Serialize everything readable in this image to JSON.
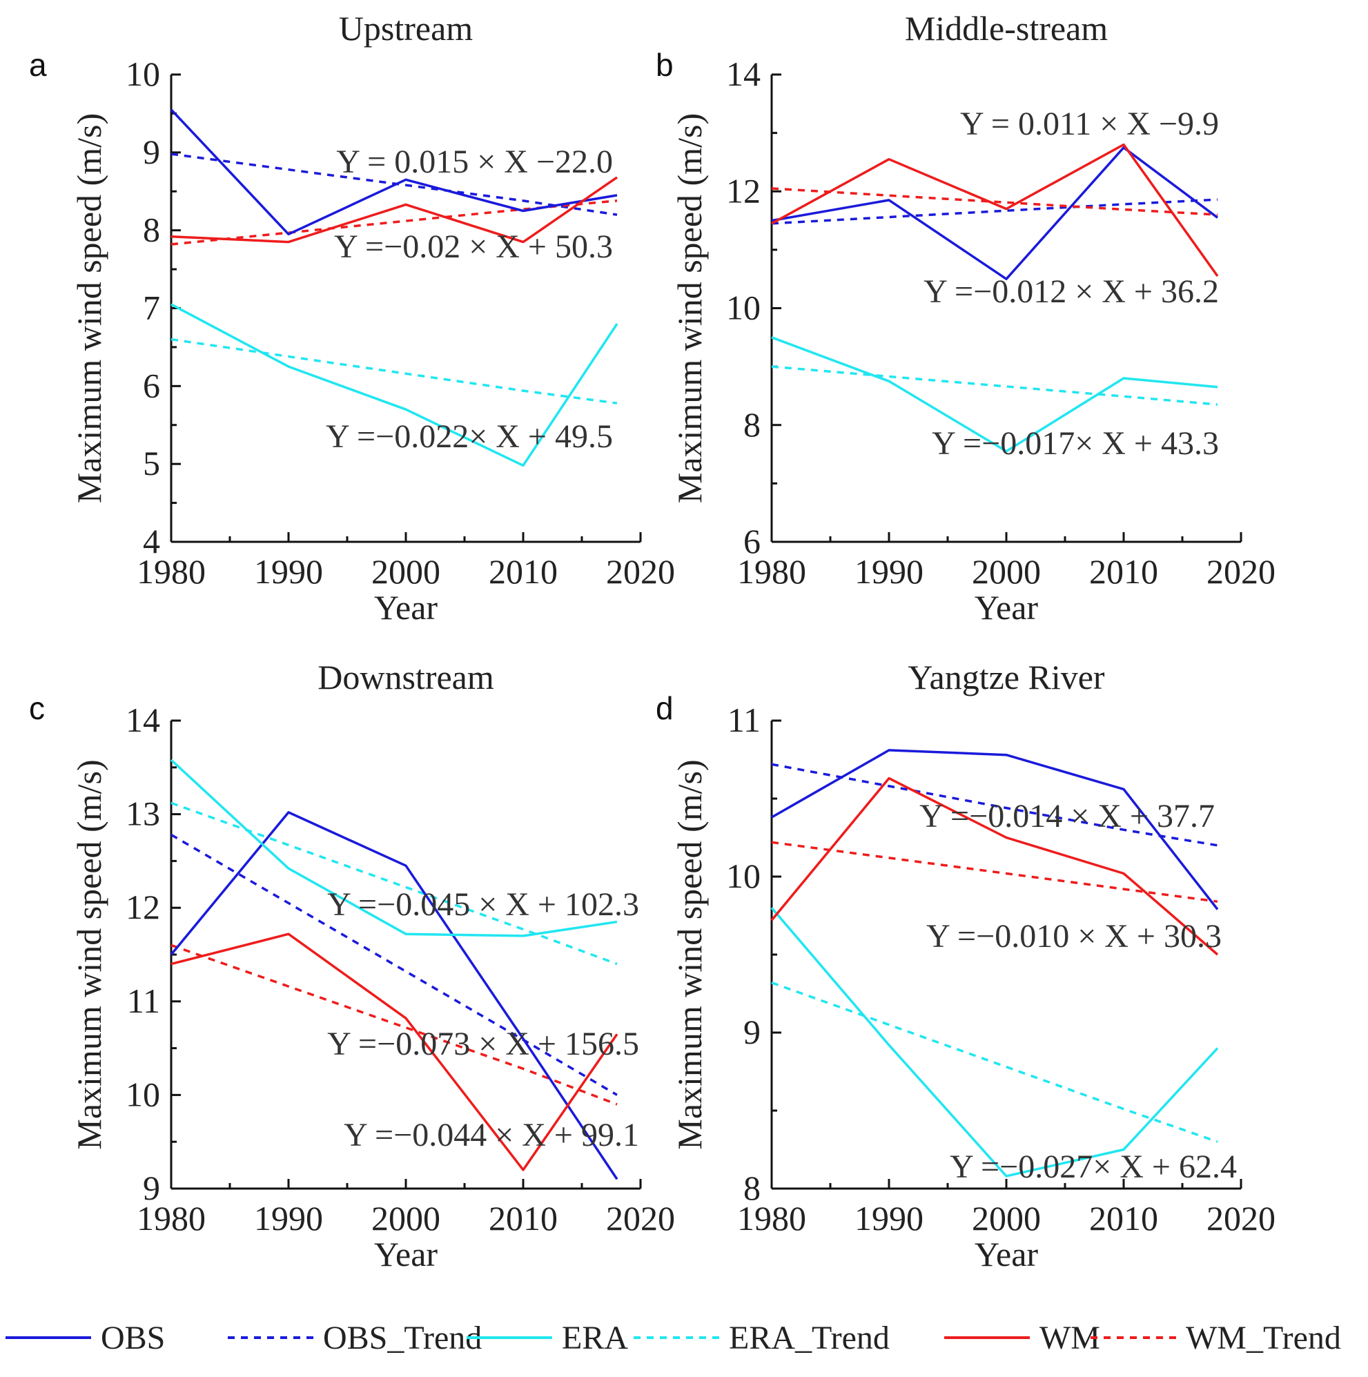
{
  "figure": {
    "legend": [
      {
        "label": "OBS",
        "color": "#1a1adb",
        "dashed": false
      },
      {
        "label": "OBS_Trend",
        "color": "#1a1adb",
        "dashed": true
      },
      {
        "label": "ERA",
        "color": "#21e6f0",
        "dashed": false
      },
      {
        "label": "ERA_Trend",
        "color": "#21e6f0",
        "dashed": true
      },
      {
        "label": "WM",
        "color": "#ee1c1c",
        "dashed": false
      },
      {
        "label": "WM_Trend",
        "color": "#ee1c1c",
        "dashed": true
      }
    ]
  },
  "chart_data": [
    {
      "type": "line",
      "panel_letter": "a",
      "title": "Upstream",
      "xlabel": "Year",
      "ylabel": "Maximum wind speed (m/s)",
      "xlim": [
        1980,
        2020
      ],
      "ylim": [
        4,
        10
      ],
      "xticks": [
        1980,
        1990,
        2000,
        2010,
        2020
      ],
      "yticks": [
        4,
        5,
        6,
        7,
        8,
        9,
        10
      ],
      "x": [
        1980,
        1990,
        2000,
        2010,
        2018
      ],
      "series": [
        {
          "name": "OBS",
          "values": [
            9.55,
            7.95,
            8.65,
            8.25,
            8.45
          ]
        },
        {
          "name": "OBS_Trend",
          "values": [
            8.98,
            8.78,
            8.58,
            8.38,
            8.2
          ]
        },
        {
          "name": "ERA",
          "values": [
            7.05,
            6.25,
            5.7,
            4.98,
            6.8
          ]
        },
        {
          "name": "ERA_Trend",
          "values": [
            6.6,
            6.38,
            6.16,
            5.94,
            5.78
          ]
        },
        {
          "name": "WM",
          "values": [
            7.92,
            7.85,
            8.33,
            7.85,
            8.68
          ]
        },
        {
          "name": "WM_Trend",
          "values": [
            7.82,
            7.97,
            8.12,
            8.27,
            8.38
          ]
        }
      ],
      "equations": [
        "Y = 0.015 × X −22.0",
        "Y =−0.02 × X + 50.3",
        "Y =−0.022× X + 49.5"
      ]
    },
    {
      "type": "line",
      "panel_letter": "b",
      "title": "Middle-stream",
      "xlabel": "Year",
      "ylabel": "Maximum wind speed (m/s)",
      "xlim": [
        1980,
        2020
      ],
      "ylim": [
        6,
        14
      ],
      "xticks": [
        1980,
        1990,
        2000,
        2010,
        2020
      ],
      "yticks": [
        6,
        8,
        10,
        12,
        14
      ],
      "x": [
        1980,
        1990,
        2000,
        2010,
        2018
      ],
      "series": [
        {
          "name": "OBS",
          "values": [
            11.5,
            11.85,
            10.5,
            12.75,
            11.55
          ]
        },
        {
          "name": "OBS_Trend",
          "values": [
            11.45,
            11.56,
            11.67,
            11.78,
            11.86
          ]
        },
        {
          "name": "ERA",
          "values": [
            9.5,
            8.75,
            7.55,
            8.8,
            8.65
          ]
        },
        {
          "name": "ERA_Trend",
          "values": [
            9.0,
            8.83,
            8.66,
            8.49,
            8.35
          ]
        },
        {
          "name": "WM",
          "values": [
            11.45,
            12.55,
            11.7,
            12.8,
            10.55
          ]
        },
        {
          "name": "WM_Trend",
          "values": [
            12.05,
            11.93,
            11.81,
            11.69,
            11.6
          ]
        }
      ],
      "equations": [
        "Y = 0.011 × X −9.9",
        "Y =−0.012 × X + 36.2",
        "Y =−0.017× X + 43.3"
      ]
    },
    {
      "type": "line",
      "panel_letter": "c",
      "title": "Downstream",
      "xlabel": "Year",
      "ylabel": "Maximum wind speed (m/s)",
      "xlim": [
        1980,
        2020
      ],
      "ylim": [
        9,
        14
      ],
      "xticks": [
        1980,
        1990,
        2000,
        2010,
        2020
      ],
      "yticks": [
        9,
        10,
        11,
        12,
        13,
        14
      ],
      "x": [
        1980,
        1990,
        2000,
        2010,
        2018
      ],
      "series": [
        {
          "name": "OBS",
          "values": [
            11.5,
            13.02,
            12.45,
            10.6,
            9.1
          ]
        },
        {
          "name": "OBS_Trend",
          "values": [
            12.78,
            12.05,
            11.32,
            10.59,
            10.0
          ]
        },
        {
          "name": "ERA",
          "values": [
            13.58,
            12.42,
            11.72,
            11.7,
            11.85
          ]
        },
        {
          "name": "ERA_Trend",
          "values": [
            13.12,
            12.67,
            12.22,
            11.77,
            11.4
          ]
        },
        {
          "name": "WM",
          "values": [
            11.4,
            11.72,
            10.82,
            9.2,
            10.65
          ]
        },
        {
          "name": "WM_Trend",
          "values": [
            11.6,
            11.16,
            10.72,
            10.28,
            9.9
          ]
        }
      ],
      "equations": [
        "Y =−0.045 × X + 102.3",
        "Y =−0.073 × X + 156.5",
        "Y =−0.044 × X + 99.1"
      ]
    },
    {
      "type": "line",
      "panel_letter": "d",
      "title": "Yangtze River",
      "xlabel": "Year",
      "ylabel": "Maximum wind speed (m/s)",
      "xlim": [
        1980,
        2020
      ],
      "ylim": [
        8,
        11
      ],
      "xticks": [
        1980,
        1990,
        2000,
        2010,
        2020
      ],
      "yticks": [
        8,
        9,
        10,
        11
      ],
      "x": [
        1980,
        1990,
        2000,
        2010,
        2018
      ],
      "series": [
        {
          "name": "OBS",
          "values": [
            10.38,
            10.81,
            10.78,
            10.56,
            9.79
          ]
        },
        {
          "name": "OBS_Trend",
          "values": [
            10.72,
            10.58,
            10.44,
            10.3,
            10.2
          ]
        },
        {
          "name": "ERA",
          "values": [
            9.8,
            8.92,
            8.08,
            8.25,
            8.9
          ]
        },
        {
          "name": "ERA_Trend",
          "values": [
            9.32,
            9.05,
            8.78,
            8.51,
            8.3
          ]
        },
        {
          "name": "WM",
          "values": [
            9.72,
            10.63,
            10.25,
            10.02,
            9.5
          ]
        },
        {
          "name": "WM_Trend",
          "values": [
            10.22,
            10.12,
            10.02,
            9.92,
            9.84
          ]
        }
      ],
      "equations": [
        "Y =−0.014 × X + 37.7",
        "Y =−0.010 × X + 30.3",
        "Y =−0.027× X + 62.4"
      ]
    }
  ]
}
